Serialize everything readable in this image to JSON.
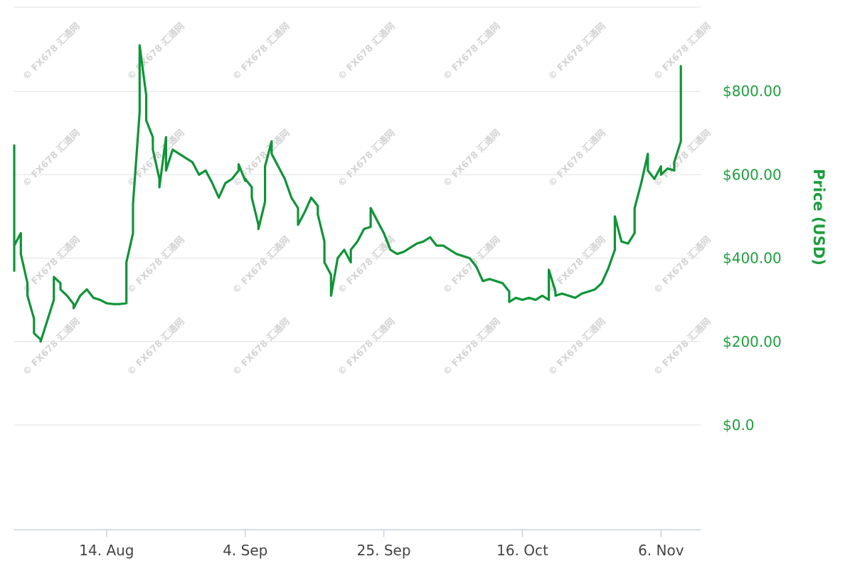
{
  "colors": {
    "line": "#0f9438",
    "grid": "#e1e1e1",
    "axis": "#c8d2e0",
    "label": "#1e9e3e",
    "tick": "#444444"
  },
  "watermark": "© FX678 汇通网",
  "chart_data": {
    "type": "line",
    "ylabel": "Price (USD)",
    "ylim": [
      0,
      1000
    ],
    "yticks": [
      0,
      200,
      400,
      600,
      800
    ],
    "ytick_labels": [
      "$0.0",
      "$200.00",
      "$400.00",
      "$600.00",
      "$800.00"
    ],
    "xlim": [
      "2017-07-31",
      "2017-11-12"
    ],
    "xticks": [
      "2017-08-14",
      "2017-09-04",
      "2017-09-25",
      "2017-10-16",
      "2017-11-06"
    ],
    "xtick_labels": [
      "14. Aug",
      "4. Sep",
      "25. Sep",
      "16. Oct",
      "6. Nov"
    ],
    "grid": true,
    "series": [
      {
        "name": "",
        "points": [
          [
            "2017-07-31",
            370
          ],
          [
            "2017-07-31",
            410
          ],
          [
            "2017-07-31",
            670
          ],
          [
            "2017-07-31",
            430
          ],
          [
            "2017-08-01",
            460
          ],
          [
            "2017-08-01",
            410
          ],
          [
            "2017-08-02",
            340
          ],
          [
            "2017-08-02",
            310
          ],
          [
            "2017-08-03",
            255
          ],
          [
            "2017-08-03",
            220
          ],
          [
            "2017-08-04",
            205
          ],
          [
            "2017-08-04",
            200
          ],
          [
            "2017-08-05",
            250
          ],
          [
            "2017-08-06",
            300
          ],
          [
            "2017-08-06",
            355
          ],
          [
            "2017-08-07",
            340
          ],
          [
            "2017-08-07",
            325
          ],
          [
            "2017-08-08",
            310
          ],
          [
            "2017-08-09",
            290
          ],
          [
            "2017-08-09",
            280
          ],
          [
            "2017-08-10",
            310
          ],
          [
            "2017-08-11",
            325
          ],
          [
            "2017-08-12",
            305
          ],
          [
            "2017-08-13",
            300
          ],
          [
            "2017-08-14",
            292
          ],
          [
            "2017-08-15",
            290
          ],
          [
            "2017-08-16",
            290
          ],
          [
            "2017-08-17",
            292
          ],
          [
            "2017-08-17",
            390
          ],
          [
            "2017-08-18",
            460
          ],
          [
            "2017-08-18",
            530
          ],
          [
            "2017-08-19",
            750
          ],
          [
            "2017-08-19",
            910
          ],
          [
            "2017-08-20",
            790
          ],
          [
            "2017-08-20",
            730
          ],
          [
            "2017-08-21",
            690
          ],
          [
            "2017-08-21",
            660
          ],
          [
            "2017-08-22",
            590
          ],
          [
            "2017-08-22",
            570
          ],
          [
            "2017-08-23",
            690
          ],
          [
            "2017-08-23",
            610
          ],
          [
            "2017-08-24",
            660
          ],
          [
            "2017-08-25",
            650
          ],
          [
            "2017-08-26",
            640
          ],
          [
            "2017-08-27",
            630
          ],
          [
            "2017-08-28",
            600
          ],
          [
            "2017-08-29",
            610
          ],
          [
            "2017-08-30",
            580
          ],
          [
            "2017-08-31",
            545
          ],
          [
            "2017-09-01",
            580
          ],
          [
            "2017-09-02",
            590
          ],
          [
            "2017-09-03",
            610
          ],
          [
            "2017-09-03",
            625
          ],
          [
            "2017-09-04",
            585
          ],
          [
            "2017-09-04",
            590
          ],
          [
            "2017-09-05",
            570
          ],
          [
            "2017-09-05",
            545
          ],
          [
            "2017-09-06",
            480
          ],
          [
            "2017-09-06",
            470
          ],
          [
            "2017-09-07",
            535
          ],
          [
            "2017-09-07",
            620
          ],
          [
            "2017-09-08",
            680
          ],
          [
            "2017-09-08",
            650
          ],
          [
            "2017-09-09",
            620
          ],
          [
            "2017-09-10",
            590
          ],
          [
            "2017-09-11",
            545
          ],
          [
            "2017-09-12",
            520
          ],
          [
            "2017-09-12",
            480
          ],
          [
            "2017-09-13",
            510
          ],
          [
            "2017-09-14",
            545
          ],
          [
            "2017-09-15",
            525
          ],
          [
            "2017-09-15",
            505
          ],
          [
            "2017-09-16",
            440
          ],
          [
            "2017-09-16",
            390
          ],
          [
            "2017-09-17",
            360
          ],
          [
            "2017-09-17",
            310
          ],
          [
            "2017-09-18",
            400
          ],
          [
            "2017-09-19",
            420
          ],
          [
            "2017-09-20",
            390
          ],
          [
            "2017-09-20",
            420
          ],
          [
            "2017-09-21",
            440
          ],
          [
            "2017-09-22",
            470
          ],
          [
            "2017-09-23",
            475
          ],
          [
            "2017-09-23",
            520
          ],
          [
            "2017-09-24",
            490
          ],
          [
            "2017-09-25",
            460
          ],
          [
            "2017-09-26",
            420
          ],
          [
            "2017-09-27",
            410
          ],
          [
            "2017-09-28",
            415
          ],
          [
            "2017-09-29",
            425
          ],
          [
            "2017-09-30",
            435
          ],
          [
            "2017-10-01",
            440
          ],
          [
            "2017-10-02",
            450
          ],
          [
            "2017-10-03",
            430
          ],
          [
            "2017-10-04",
            430
          ],
          [
            "2017-10-05",
            420
          ],
          [
            "2017-10-06",
            410
          ],
          [
            "2017-10-07",
            405
          ],
          [
            "2017-10-08",
            400
          ],
          [
            "2017-10-09",
            380
          ],
          [
            "2017-10-10",
            345
          ],
          [
            "2017-10-11",
            350
          ],
          [
            "2017-10-12",
            345
          ],
          [
            "2017-10-13",
            340
          ],
          [
            "2017-10-14",
            320
          ],
          [
            "2017-10-14",
            295
          ],
          [
            "2017-10-15",
            305
          ],
          [
            "2017-10-16",
            300
          ],
          [
            "2017-10-17",
            305
          ],
          [
            "2017-10-18",
            300
          ],
          [
            "2017-10-19",
            310
          ],
          [
            "2017-10-20",
            300
          ],
          [
            "2017-10-20",
            372
          ],
          [
            "2017-10-21",
            320
          ],
          [
            "2017-10-21",
            310
          ],
          [
            "2017-10-22",
            315
          ],
          [
            "2017-10-23",
            310
          ],
          [
            "2017-10-24",
            305
          ],
          [
            "2017-10-25",
            315
          ],
          [
            "2017-10-26",
            320
          ],
          [
            "2017-10-27",
            325
          ],
          [
            "2017-10-28",
            340
          ],
          [
            "2017-10-29",
            375
          ],
          [
            "2017-10-30",
            420
          ],
          [
            "2017-10-30",
            500
          ],
          [
            "2017-10-31",
            440
          ],
          [
            "2017-11-01",
            435
          ],
          [
            "2017-11-02",
            460
          ],
          [
            "2017-11-02",
            520
          ],
          [
            "2017-11-03",
            580
          ],
          [
            "2017-11-04",
            650
          ],
          [
            "2017-11-04",
            610
          ],
          [
            "2017-11-05",
            590
          ],
          [
            "2017-11-06",
            620
          ],
          [
            "2017-11-06",
            600
          ],
          [
            "2017-11-07",
            615
          ],
          [
            "2017-11-08",
            610
          ],
          [
            "2017-11-08",
            630
          ],
          [
            "2017-11-09",
            680
          ],
          [
            "2017-11-09",
            780
          ],
          [
            "2017-11-09",
            860
          ]
        ]
      }
    ]
  }
}
